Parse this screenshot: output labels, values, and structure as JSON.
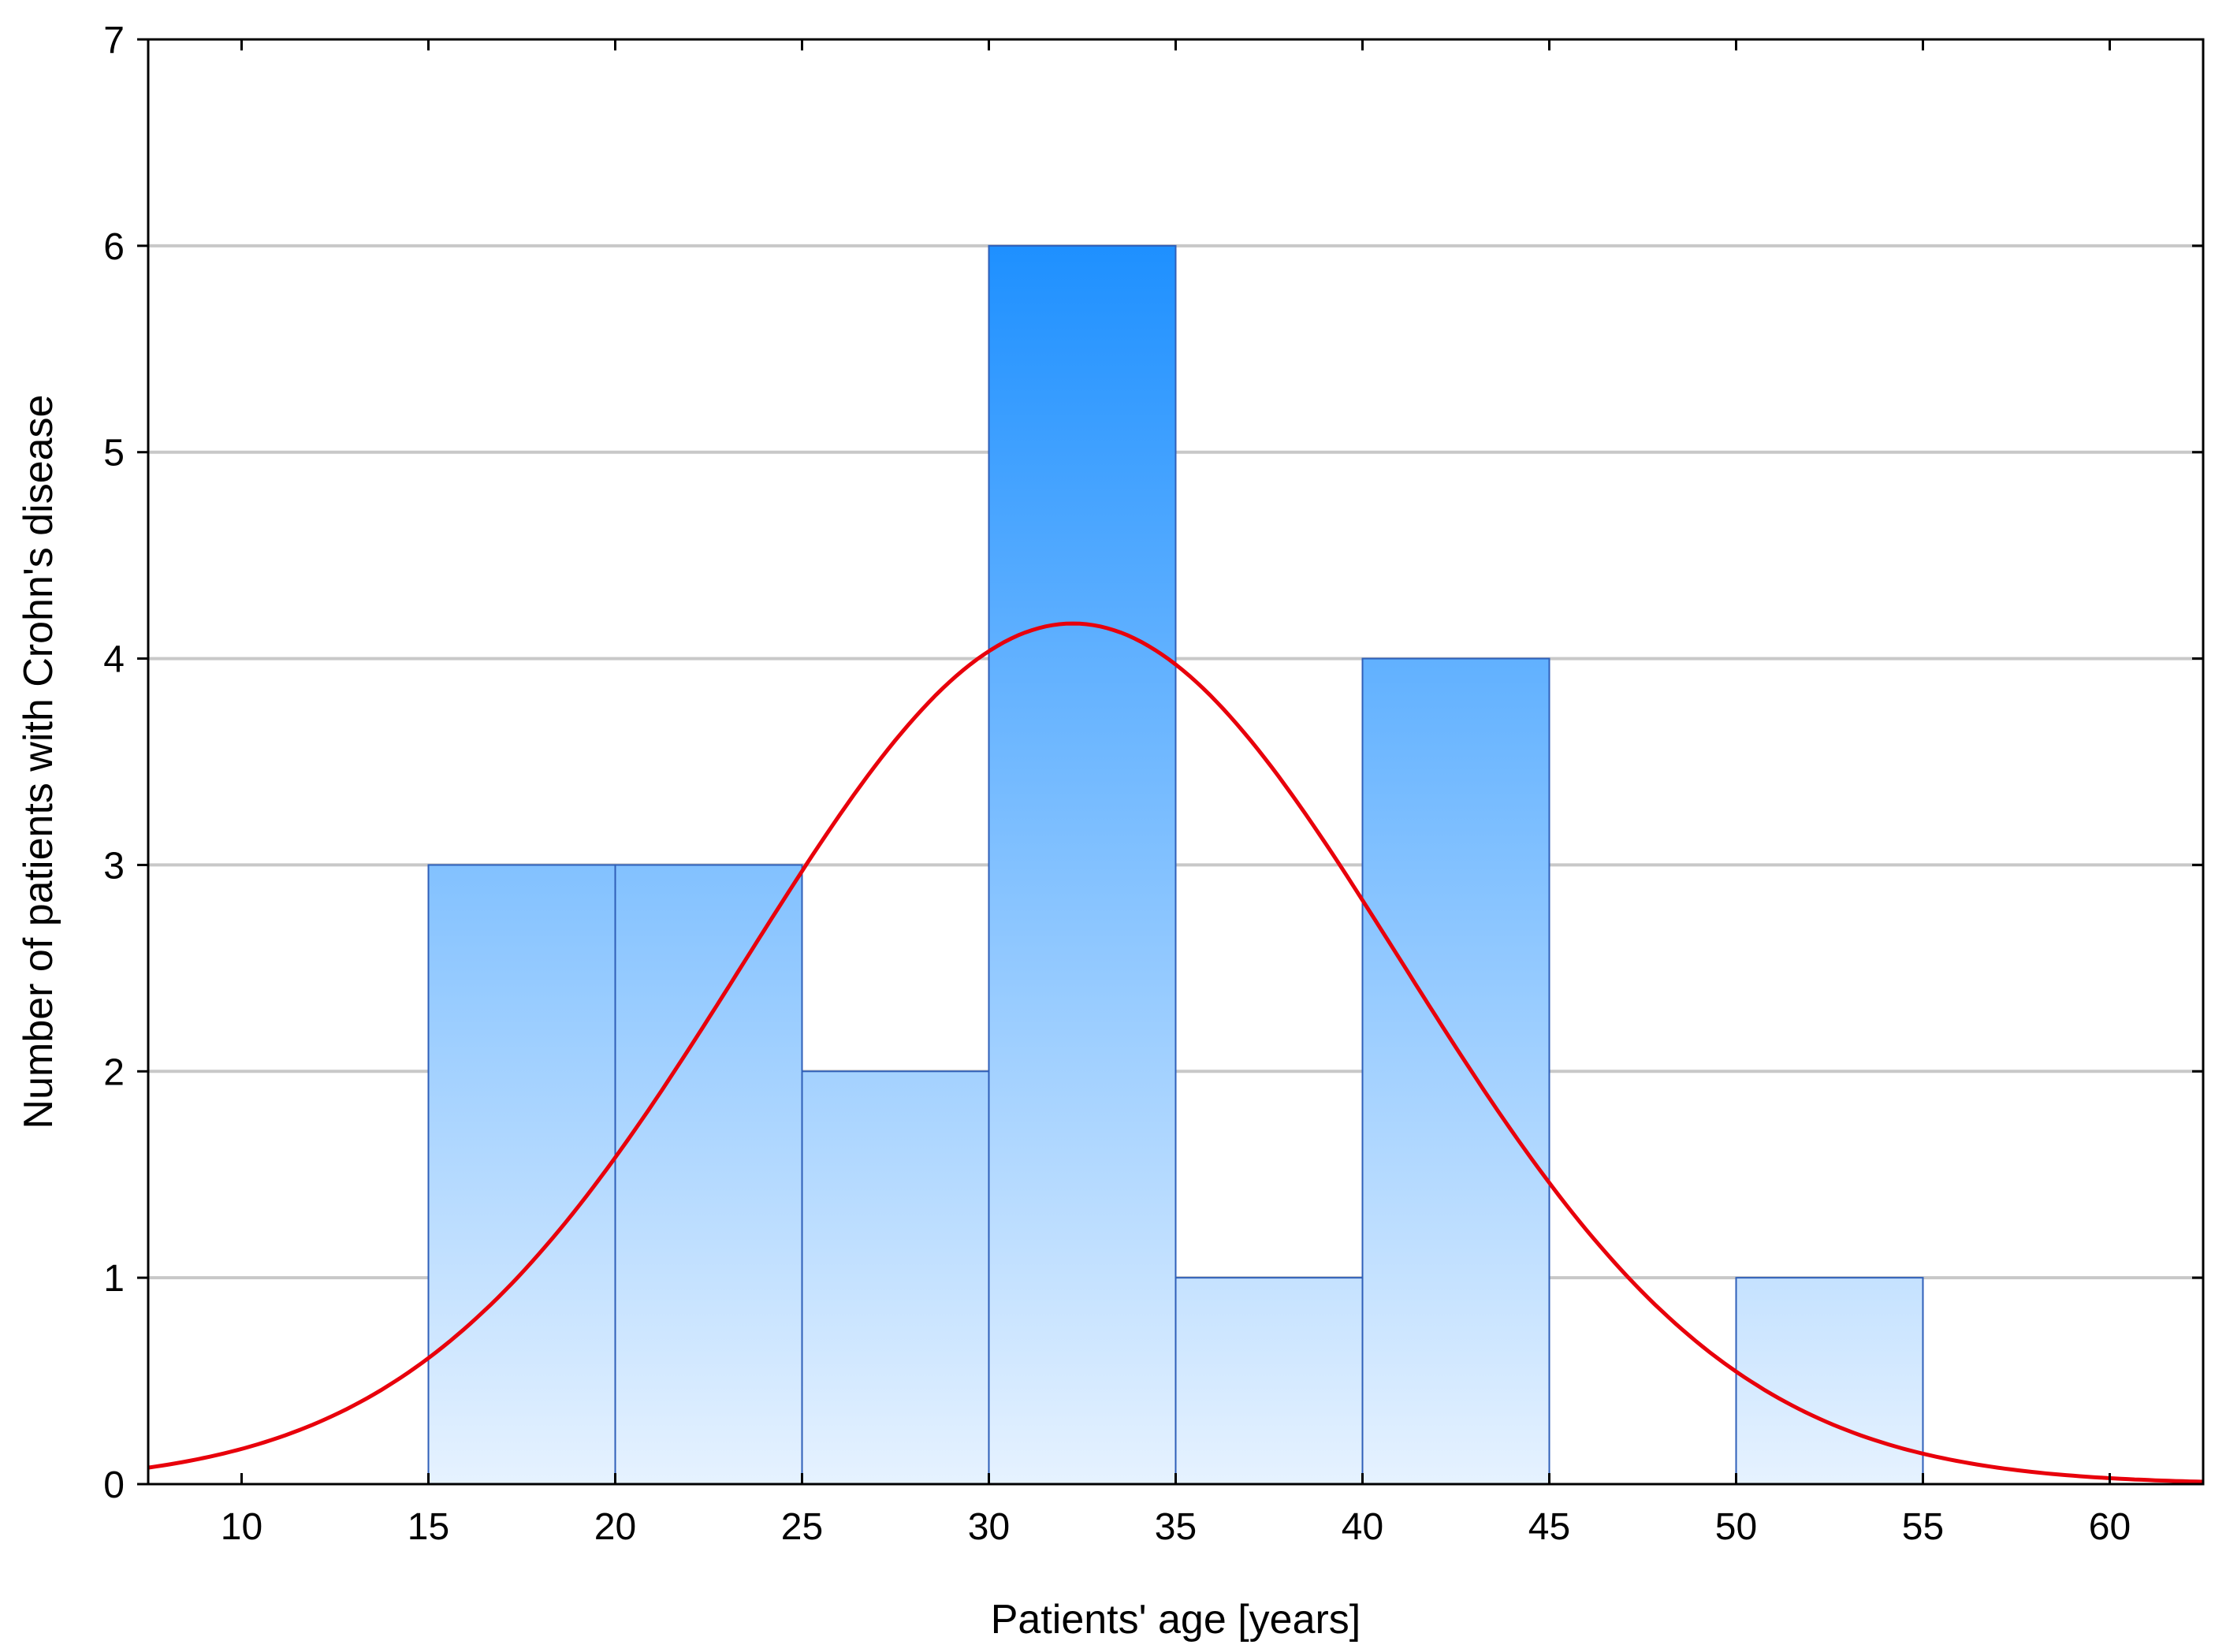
{
  "chart_data": {
    "type": "bar",
    "title": "",
    "xlabel": "Patients' age [years]",
    "ylabel": "Number of patients with Crohn's disease",
    "xlim": [
      7.5,
      62.5
    ],
    "ylim": [
      0,
      7
    ],
    "grid": "horizontal",
    "x_ticks": [
      10,
      15,
      20,
      25,
      30,
      35,
      40,
      45,
      50,
      55,
      60
    ],
    "y_ticks": [
      0,
      1,
      2,
      3,
      4,
      5,
      6,
      7
    ],
    "bins": [
      {
        "from": 15,
        "to": 20,
        "count": 3
      },
      {
        "from": 20,
        "to": 25,
        "count": 3
      },
      {
        "from": 25,
        "to": 30,
        "count": 2
      },
      {
        "from": 30,
        "to": 35,
        "count": 6
      },
      {
        "from": 35,
        "to": 40,
        "count": 1
      },
      {
        "from": 40,
        "to": 45,
        "count": 4
      },
      {
        "from": 45,
        "to": 50,
        "count": 0
      },
      {
        "from": 50,
        "to": 55,
        "count": 1
      }
    ],
    "fit_curve": {
      "name": "normal fit",
      "mean": 32.25,
      "sd": 8.8,
      "peak": 4.17,
      "color": "#e8000b"
    },
    "colors": {
      "bar_top": "#1e90ff",
      "bar_bottom": "#e6f2ff",
      "bar_edge": "#2f5fb8",
      "grid": "#c8c8c8"
    }
  }
}
